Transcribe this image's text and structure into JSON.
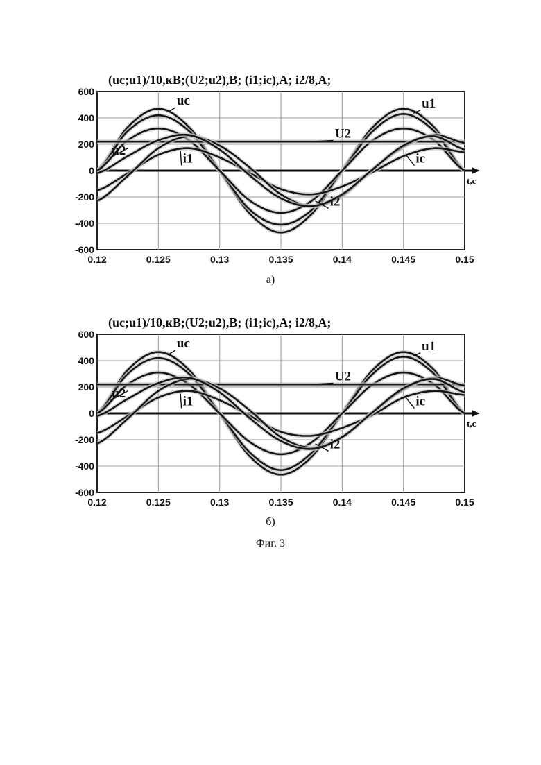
{
  "figure_caption": "Фиг. 3",
  "chart_data": [
    {
      "type": "line",
      "panel_label": "а)",
      "title": "(uc;u1)/10,кВ;(U2;u2),В; (i1;ic),А; i2/8,А;",
      "xlabel": "t,c",
      "ylabel": "",
      "xlim": [
        0.12,
        0.15
      ],
      "ylim": [
        -600,
        600
      ],
      "x_ticks": [
        "0.12",
        "0.125",
        "0.13",
        "0.135",
        "0.14",
        "0.145",
        "0.15"
      ],
      "y_ticks": [
        "600",
        "400",
        "200",
        "0",
        "-200",
        "-400",
        "-600"
      ],
      "grid": true,
      "series": [
        {
          "name": "uc",
          "x": [
            0.12,
            0.1225,
            0.125,
            0.1275,
            0.13,
            0.1325,
            0.135,
            0.1375,
            0.14,
            0.1425,
            0.145,
            0.1475,
            0.15
          ],
          "y": [
            0,
            330,
            470,
            330,
            0,
            -330,
            -470,
            -330,
            0,
            330,
            470,
            330,
            0
          ]
        },
        {
          "name": "u1",
          "x": [
            0.12,
            0.1225,
            0.125,
            0.1275,
            0.13,
            0.1325,
            0.135,
            0.1375,
            0.14,
            0.1425,
            0.145,
            0.1475,
            0.15
          ],
          "y": [
            0,
            300,
            420,
            300,
            0,
            -300,
            -410,
            -300,
            0,
            300,
            430,
            300,
            0
          ]
        },
        {
          "name": "u2",
          "x": [
            0.12,
            0.1225,
            0.125,
            0.1275,
            0.13,
            0.1325,
            0.135,
            0.1375,
            0.14,
            0.1425,
            0.145,
            0.1475,
            0.15
          ],
          "y": [
            0,
            230,
            320,
            230,
            0,
            -230,
            -320,
            -230,
            0,
            230,
            320,
            230,
            0
          ]
        },
        {
          "name": "U2",
          "x": [
            0.12,
            0.15
          ],
          "y": [
            220,
            220
          ]
        },
        {
          "name": "i1",
          "x": [
            0.12,
            0.1225,
            0.125,
            0.1275,
            0.13,
            0.1325,
            0.135,
            0.1375,
            0.14,
            0.1425,
            0.145,
            0.1475,
            0.15
          ],
          "y": [
            -150,
            -20,
            120,
            170,
            100,
            -20,
            -140,
            -180,
            -120,
            -10,
            110,
            170,
            140
          ]
        },
        {
          "name": "ic",
          "x": [
            0.12,
            0.1225,
            0.125,
            0.1275,
            0.13,
            0.1325,
            0.135,
            0.1375,
            0.14,
            0.1425,
            0.145,
            0.1475,
            0.15
          ],
          "y": [
            -230,
            -40,
            170,
            260,
            190,
            20,
            -180,
            -270,
            -190,
            10,
            180,
            270,
            210
          ]
        },
        {
          "name": "i2",
          "x": [
            0.12,
            0.1225,
            0.125,
            0.1275,
            0.13,
            0.1325,
            0.135,
            0.1375,
            0.14,
            0.1425,
            0.145,
            0.1475,
            0.15
          ],
          "y": [
            -20,
            110,
            230,
            270,
            160,
            -40,
            -210,
            -270,
            -180,
            10,
            190,
            260,
            160
          ]
        }
      ]
    },
    {
      "type": "line",
      "panel_label": "б)",
      "title": "(uc;u1)/10,кВ;(U2;u2),В; (i1;ic),А; i2/8,А;",
      "xlabel": "t,c",
      "ylabel": "",
      "xlim": [
        0.12,
        0.15
      ],
      "ylim": [
        -600,
        600
      ],
      "x_ticks": [
        "0.12",
        "0.125",
        "0.13",
        "0.135",
        "0.14",
        "0.145",
        "0.15"
      ],
      "y_ticks": [
        "600",
        "400",
        "200",
        "0",
        "-200",
        "-400",
        "-600"
      ],
      "grid": true,
      "series": [
        {
          "name": "uc",
          "x": [
            0.12,
            0.1225,
            0.125,
            0.1275,
            0.13,
            0.1325,
            0.135,
            0.1375,
            0.14,
            0.1425,
            0.145,
            0.1475,
            0.15
          ],
          "y": [
            0,
            330,
            465,
            330,
            0,
            -330,
            -465,
            -330,
            0,
            330,
            465,
            330,
            0
          ]
        },
        {
          "name": "u1",
          "x": [
            0.12,
            0.1225,
            0.125,
            0.1275,
            0.13,
            0.1325,
            0.135,
            0.1375,
            0.14,
            0.1425,
            0.145,
            0.1475,
            0.15
          ],
          "y": [
            0,
            300,
            420,
            300,
            0,
            -300,
            -430,
            -300,
            0,
            300,
            430,
            300,
            0
          ]
        },
        {
          "name": "u2",
          "x": [
            0.12,
            0.1225,
            0.125,
            0.1275,
            0.13,
            0.1325,
            0.135,
            0.1375,
            0.14,
            0.1425,
            0.145,
            0.1475,
            0.15
          ],
          "y": [
            0,
            220,
            310,
            220,
            0,
            -220,
            -310,
            -220,
            0,
            220,
            310,
            220,
            0
          ]
        },
        {
          "name": "U2",
          "x": [
            0.12,
            0.15
          ],
          "y": [
            220,
            220
          ]
        },
        {
          "name": "i1",
          "x": [
            0.12,
            0.1225,
            0.125,
            0.1275,
            0.13,
            0.1325,
            0.135,
            0.1375,
            0.14,
            0.1425,
            0.145,
            0.1475,
            0.15
          ],
          "y": [
            -150,
            -20,
            120,
            170,
            100,
            -20,
            -140,
            -170,
            -110,
            -10,
            120,
            170,
            140
          ]
        },
        {
          "name": "ic",
          "x": [
            0.12,
            0.1225,
            0.125,
            0.1275,
            0.13,
            0.1325,
            0.135,
            0.1375,
            0.14,
            0.1425,
            0.145,
            0.1475,
            0.15
          ],
          "y": [
            -230,
            -40,
            170,
            260,
            190,
            20,
            -180,
            -260,
            -180,
            10,
            180,
            270,
            210
          ]
        },
        {
          "name": "i2",
          "x": [
            0.12,
            0.1225,
            0.125,
            0.1275,
            0.13,
            0.1325,
            0.135,
            0.1375,
            0.14,
            0.1425,
            0.145,
            0.1475,
            0.15
          ],
          "y": [
            -20,
            110,
            230,
            270,
            160,
            -40,
            -210,
            -270,
            -180,
            10,
            190,
            260,
            160
          ]
        }
      ]
    }
  ]
}
